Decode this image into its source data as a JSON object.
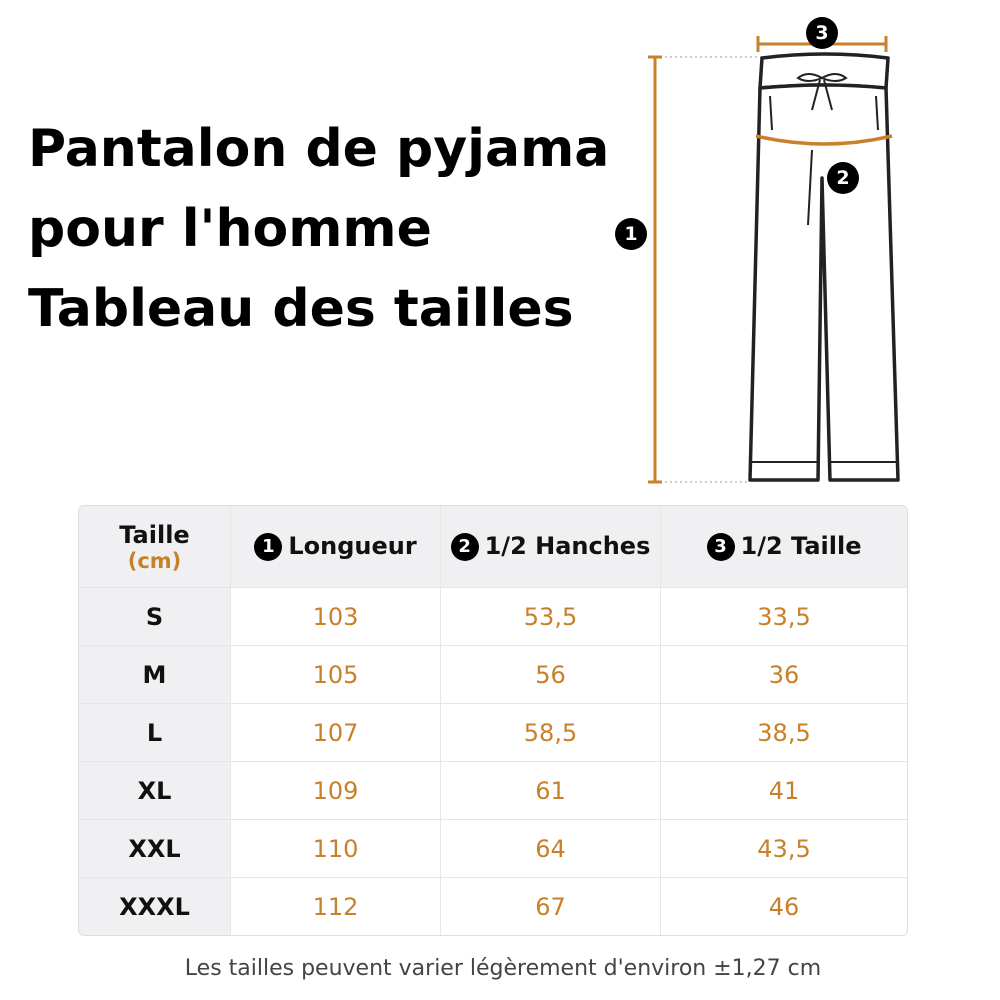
{
  "title": [
    "Pantalon de pyjama",
    "pour l'homme",
    "Tableau des tailles"
  ],
  "markers": [
    "1",
    "2",
    "3"
  ],
  "table": {
    "header": {
      "size": "Taille",
      "unit": "(cm)",
      "columns": [
        "Longueur",
        "1/2 Hanches",
        "1/2 Taille"
      ]
    },
    "rows": [
      [
        "S",
        "103",
        "53,5",
        "33,5"
      ],
      [
        "M",
        "105",
        "56",
        "36"
      ],
      [
        "L",
        "107",
        "58,5",
        "38,5"
      ],
      [
        "XL",
        "109",
        "61",
        "41"
      ],
      [
        "XXL",
        "110",
        "64",
        "43,5"
      ],
      [
        "XXXL",
        "112",
        "67",
        "46"
      ]
    ]
  },
  "footnote": "Les tailles peuvent varier légèrement d'environ ±1,27 cm"
}
